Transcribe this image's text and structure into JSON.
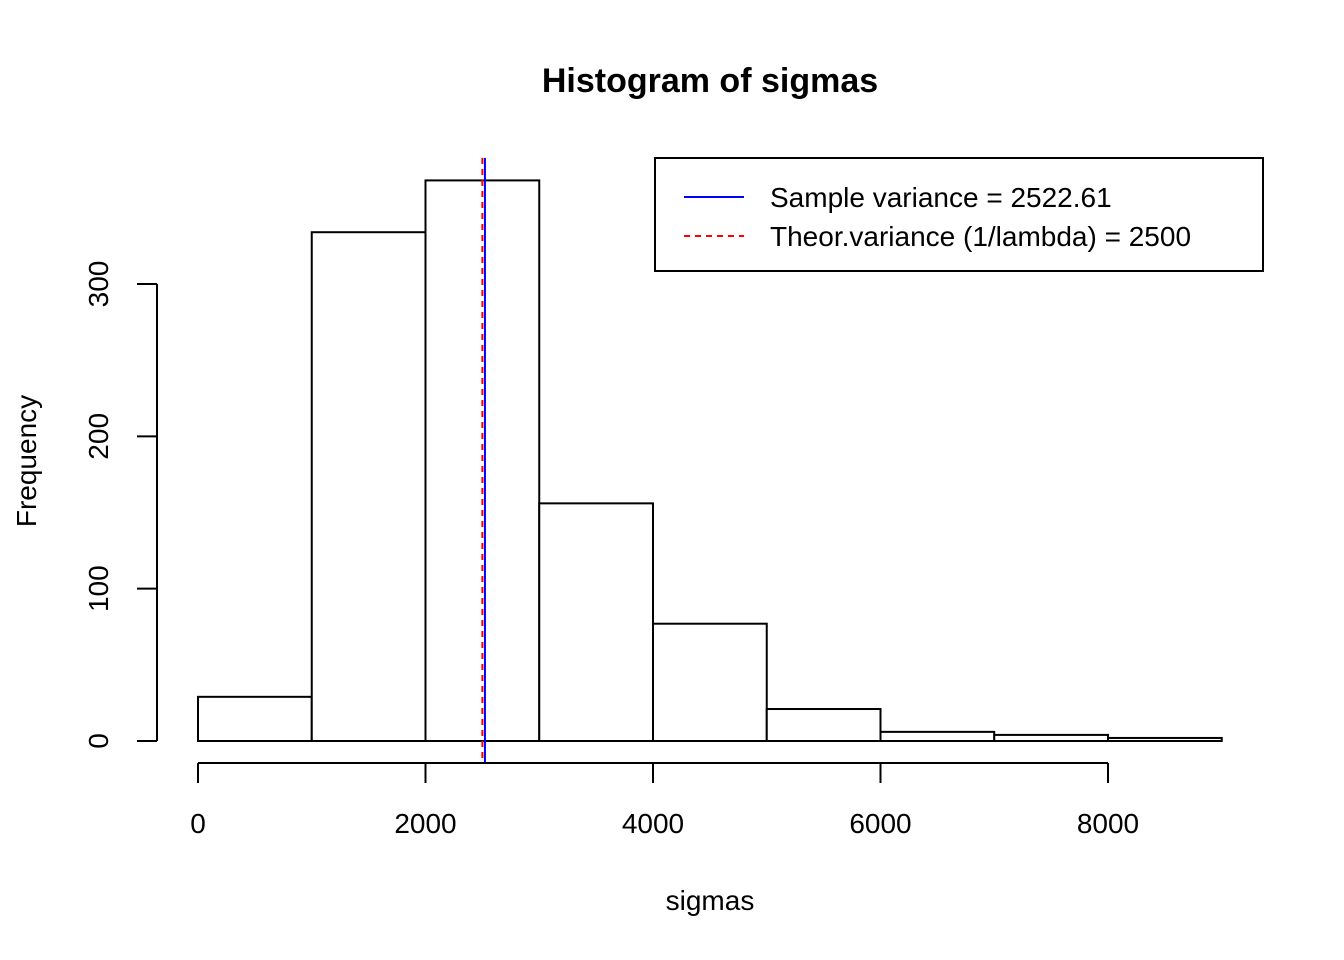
{
  "chart_data": {
    "type": "bar",
    "title": "Histogram of sigmas",
    "xlabel": "sigmas",
    "ylabel": "Frequency",
    "bins": [
      {
        "start": 0,
        "end": 1000,
        "count": 29
      },
      {
        "start": 1000,
        "end": 2000,
        "count": 334
      },
      {
        "start": 2000,
        "end": 3000,
        "count": 368
      },
      {
        "start": 3000,
        "end": 4000,
        "count": 156
      },
      {
        "start": 4000,
        "end": 5000,
        "count": 77
      },
      {
        "start": 5000,
        "end": 6000,
        "count": 21
      },
      {
        "start": 6000,
        "end": 7000,
        "count": 6
      },
      {
        "start": 7000,
        "end": 8000,
        "count": 4
      },
      {
        "start": 8000,
        "end": 9000,
        "count": 2
      }
    ],
    "xticks": [
      0,
      2000,
      4000,
      6000,
      8000
    ],
    "yticks": [
      0,
      100,
      200,
      300
    ],
    "xlim": [
      0,
      9000
    ],
    "ylim": [
      0,
      368
    ],
    "vlines": [
      {
        "x": 2522.61,
        "color": "#0000ff",
        "style": "solid",
        "label": "Sample variance = 2522.61"
      },
      {
        "x": 2500,
        "color": "#ff0000",
        "style": "dashed",
        "label": "Theor.variance (1/lambda) = 2500"
      }
    ],
    "legend_position": "top-right"
  }
}
